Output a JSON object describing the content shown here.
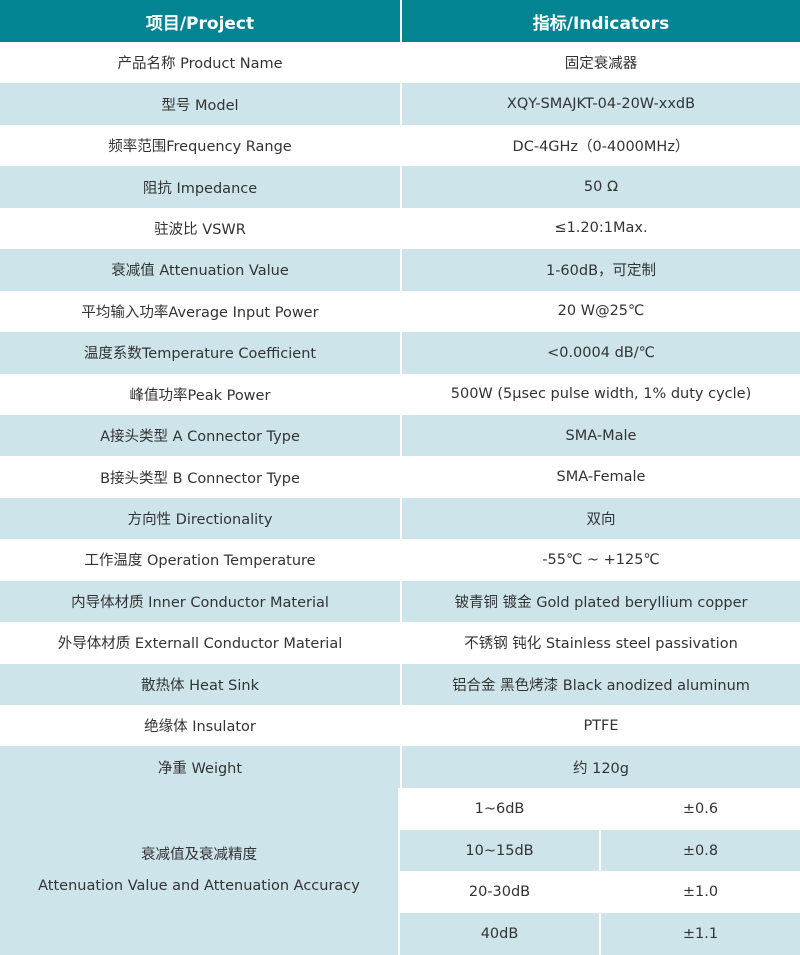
{
  "header": {
    "project": "项目/Project",
    "indicators": "指标/Indicators"
  },
  "rows": [
    {
      "label": "产品名称 Product Name",
      "value": "固定衰减器"
    },
    {
      "label": "型号 Model",
      "value": "XQY-SMAJKT-04-20W-xxdB"
    },
    {
      "label": "频率范围Frequency Range",
      "value": "DC-4GHz（0-4000MHz）"
    },
    {
      "label": "阻抗 Impedance",
      "value": "50 Ω"
    },
    {
      "label": "驻波比 VSWR",
      "value": "≤1.20:1Max."
    },
    {
      "label": "衰减值 Attenuation Value",
      "value": "1-60dB，可定制"
    },
    {
      "label": "平均输入功率Average Input Power",
      "value": "20 W@25℃"
    },
    {
      "label": "温度系数Temperature Coefficient",
      "value": "<0.0004 dB/℃"
    },
    {
      "label": "峰值功率Peak Power",
      "value": "500W (5μsec pulse width, 1% duty cycle)"
    },
    {
      "label": "A接头类型 A Connector Type",
      "value": "SMA-Male"
    },
    {
      "label": "B接头类型 B Connector Type",
      "value": "SMA-Female"
    },
    {
      "label": "方向性 Directionality",
      "value": "双向"
    },
    {
      "label": "工作温度 Operation Temperature",
      "value": "-55℃ ~ +125℃"
    },
    {
      "label": "内导体材质 Inner Conductor Material",
      "value": "铍青铜 镀金 Gold plated beryllium copper"
    },
    {
      "label": "外导体材质 Externall Conductor Material",
      "value": "不锈钢 钝化 Stainless steel passivation"
    },
    {
      "label": "散热体 Heat Sink",
      "value": "铝合金 黑色烤漆 Black anodized aluminum"
    },
    {
      "label": "绝缘体 Insulator",
      "value": "PTFE"
    },
    {
      "label": "净重 Weight",
      "value": "约 120g"
    }
  ],
  "accuracy": {
    "label_cn": "衰减值及衰减精度",
    "label_en": "Attenuation Value and Attenuation Accuracy",
    "rows": [
      {
        "range": "1~6dB",
        "accuracy": "±0.6"
      },
      {
        "range": "10~15dB",
        "accuracy": "±0.8"
      },
      {
        "range": "20-30dB",
        "accuracy": "±1.0"
      },
      {
        "range": "40dB",
        "accuracy": "±1.1"
      }
    ]
  },
  "colors": {
    "header": "#038493",
    "alt_row": "#cde5ea"
  }
}
